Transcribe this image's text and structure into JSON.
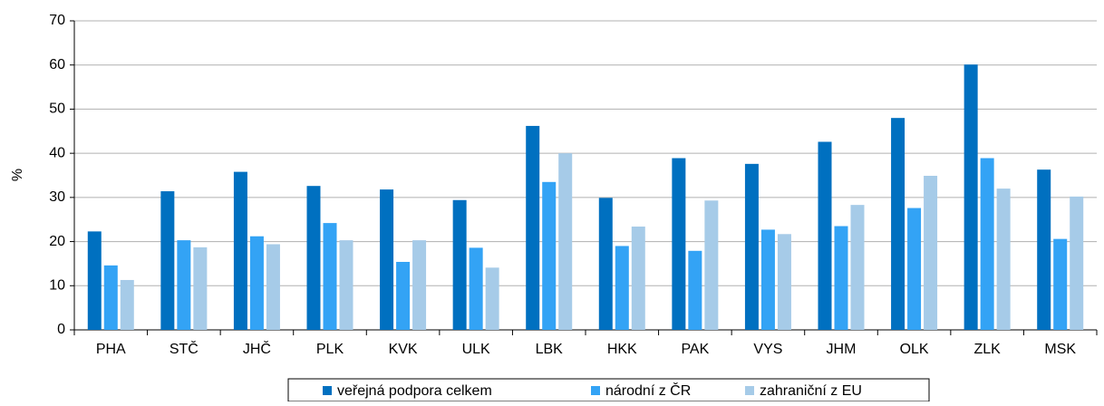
{
  "chart_data": {
    "type": "bar",
    "y_label": "%",
    "categories": [
      "PHA",
      "STČ",
      "JHČ",
      "PLK",
      "KVK",
      "ULK",
      "LBK",
      "HKK",
      "PAK",
      "VYS",
      "JHM",
      "OLK",
      "ZLK",
      "MSK"
    ],
    "series": [
      {
        "name": "veřejná podpora celkem",
        "color": "#0070c0",
        "values": [
          22.3,
          31.4,
          35.8,
          32.6,
          31.8,
          29.4,
          46.2,
          29.9,
          38.9,
          37.6,
          42.6,
          48.0,
          60.1,
          36.3
        ]
      },
      {
        "name": "národní z ČR",
        "color": "#33a3f5",
        "values": [
          14.6,
          20.3,
          21.2,
          24.2,
          15.4,
          18.6,
          33.5,
          19.0,
          17.9,
          22.7,
          23.5,
          27.6,
          38.9,
          20.6
        ]
      },
      {
        "name": "zahraniční z EU",
        "color": "#a6cbe8",
        "values": [
          11.3,
          18.7,
          19.4,
          20.3,
          20.3,
          14.1,
          40.0,
          23.4,
          29.3,
          21.7,
          28.3,
          34.9,
          32.0,
          30.2
        ]
      }
    ],
    "ylim": [
      0,
      70
    ],
    "yticks": [
      0,
      10,
      20,
      30,
      40,
      50,
      60,
      70
    ],
    "grid": true,
    "legend": "bottom"
  }
}
